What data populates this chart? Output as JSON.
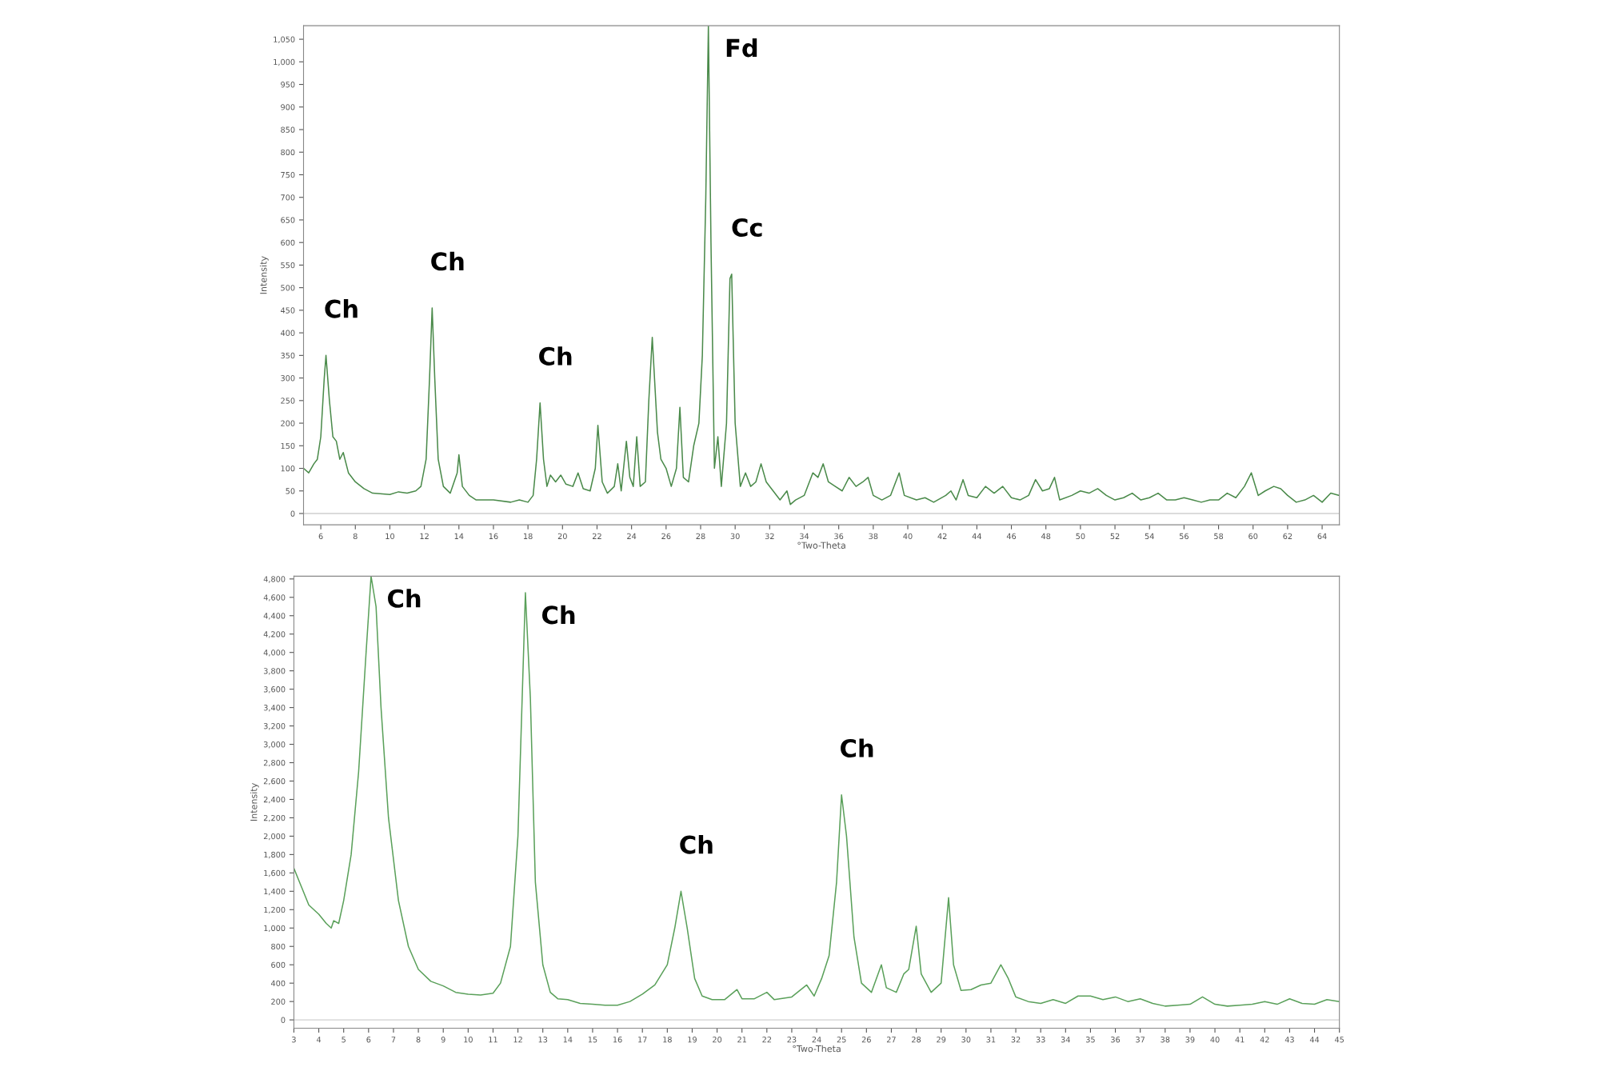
{
  "chart_data": [
    {
      "type": "line",
      "xlabel": "°Two-Theta",
      "ylabel": "Intensity",
      "xlim": [
        5,
        65
      ],
      "ylim": [
        -25,
        1080
      ],
      "xticks": [
        6,
        8,
        10,
        12,
        14,
        16,
        18,
        20,
        22,
        24,
        26,
        28,
        30,
        32,
        34,
        36,
        38,
        40,
        42,
        44,
        46,
        48,
        50,
        52,
        54,
        56,
        58,
        60,
        62,
        64
      ],
      "yticks": [
        0,
        50,
        100,
        150,
        200,
        250,
        300,
        350,
        400,
        450,
        500,
        550,
        600,
        650,
        700,
        750,
        800,
        850,
        900,
        950,
        {
          "value": 1000,
          "label": "1,000"
        },
        {
          "value": 1050,
          "label": "1,050"
        }
      ],
      "grid": false,
      "ref_lines": [
        {
          "axis": "y",
          "value": 0,
          "color": "#d0d0d0"
        }
      ],
      "annotations": [
        {
          "text": "Ch",
          "x": 6.3,
          "y": 350
        },
        {
          "text": "Ch",
          "x": 12.45,
          "y": 455
        },
        {
          "text": "Ch",
          "x": 18.7,
          "y": 245
        },
        {
          "text": "Fd",
          "x": 28.45,
          "y": 1080
        },
        {
          "text": "Cc",
          "x": 29.8,
          "y": 530
        }
      ],
      "series": [
        {
          "color": "#4a8a4a",
          "x": [
            5.0,
            5.3,
            5.6,
            5.8,
            6.0,
            6.2,
            6.3,
            6.5,
            6.7,
            6.9,
            7.1,
            7.3,
            7.6,
            8.0,
            8.5,
            9.0,
            10.0,
            10.5,
            11.0,
            11.5,
            11.8,
            12.1,
            12.3,
            12.45,
            12.6,
            12.8,
            13.1,
            13.5,
            13.9,
            14.0,
            14.2,
            14.6,
            15.0,
            16.0,
            17.0,
            17.5,
            18.0,
            18.3,
            18.5,
            18.7,
            18.9,
            19.1,
            19.3,
            19.6,
            19.9,
            20.2,
            20.6,
            20.9,
            21.2,
            21.6,
            21.9,
            22.05,
            22.3,
            22.6,
            23.0,
            23.2,
            23.4,
            23.7,
            23.9,
            24.1,
            24.3,
            24.5,
            24.8,
            25.0,
            25.2,
            25.5,
            25.7,
            26.0,
            26.3,
            26.6,
            26.8,
            27.0,
            27.3,
            27.6,
            27.9,
            28.1,
            28.3,
            28.45,
            28.6,
            28.8,
            29.0,
            29.2,
            29.5,
            29.7,
            29.8,
            30.0,
            30.3,
            30.6,
            30.9,
            31.2,
            31.5,
            31.8,
            32.2,
            32.6,
            33.0,
            33.2,
            33.5,
            34.0,
            34.5,
            34.8,
            35.1,
            35.4,
            35.8,
            36.2,
            36.6,
            37.0,
            37.4,
            37.7,
            38.0,
            38.5,
            39.0,
            39.5,
            39.8,
            40.5,
            41.0,
            41.5,
            42.2,
            42.5,
            42.8,
            43.2,
            43.5,
            44.0,
            44.5,
            45.0,
            45.5,
            46.0,
            46.5,
            47.0,
            47.4,
            47.8,
            48.2,
            48.5,
            48.8,
            49.5,
            50.0,
            50.5,
            51.0,
            51.5,
            52.0,
            52.5,
            53.0,
            53.5,
            54.0,
            54.5,
            55.0,
            55.5,
            56.0,
            56.5,
            57.0,
            57.5,
            58.0,
            58.5,
            59.0,
            59.5,
            59.9,
            60.3,
            60.7,
            61.2,
            61.6,
            62.0,
            62.5,
            63.0,
            63.5,
            64.0,
            64.5,
            65.0
          ],
          "values": [
            100,
            90,
            110,
            120,
            170,
            300,
            350,
            250,
            170,
            160,
            120,
            135,
            90,
            70,
            55,
            45,
            42,
            48,
            45,
            50,
            60,
            120,
            300,
            455,
            300,
            120,
            60,
            45,
            90,
            130,
            60,
            40,
            30,
            30,
            25,
            30,
            25,
            40,
            120,
            245,
            120,
            60,
            85,
            70,
            85,
            65,
            60,
            90,
            55,
            50,
            100,
            195,
            70,
            45,
            60,
            110,
            50,
            160,
            80,
            60,
            170,
            60,
            70,
            250,
            390,
            180,
            120,
            100,
            60,
            100,
            235,
            80,
            70,
            150,
            200,
            350,
            700,
            1080,
            600,
            100,
            170,
            60,
            200,
            520,
            530,
            200,
            60,
            90,
            60,
            70,
            110,
            70,
            50,
            30,
            50,
            20,
            30,
            40,
            90,
            80,
            110,
            70,
            60,
            50,
            80,
            60,
            70,
            80,
            40,
            30,
            40,
            90,
            40,
            30,
            35,
            25,
            40,
            50,
            30,
            75,
            40,
            35,
            60,
            45,
            60,
            35,
            30,
            40,
            75,
            50,
            55,
            80,
            30,
            40,
            50,
            45,
            55,
            40,
            30,
            35,
            45,
            30,
            35,
            45,
            30,
            30,
            35,
            30,
            25,
            30,
            30,
            45,
            35,
            60,
            90,
            40,
            50,
            60,
            55,
            40,
            25,
            30,
            40,
            25,
            45,
            40
          ]
        }
      ]
    },
    {
      "type": "line",
      "xlabel": "°Two-Theta",
      "ylabel": "Intensity",
      "xlim": [
        3,
        45
      ],
      "ylim": [
        -90,
        4830
      ],
      "xticks": [
        3,
        4,
        5,
        6,
        7,
        8,
        9,
        10,
        11,
        12,
        13,
        14,
        15,
        16,
        17,
        18,
        19,
        20,
        21,
        22,
        23,
        24,
        25,
        26,
        27,
        28,
        29,
        30,
        31,
        32,
        33,
        34,
        35,
        36,
        37,
        38,
        39,
        40,
        41,
        42,
        43,
        44,
        45
      ],
      "yticks": [
        0,
        200,
        400,
        600,
        800,
        {
          "value": 1000,
          "label": "1,000"
        },
        {
          "value": 1200,
          "label": "1,200"
        },
        {
          "value": 1400,
          "label": "1,400"
        },
        {
          "value": 1600,
          "label": "1,600"
        },
        {
          "value": 1800,
          "label": "1,800"
        },
        {
          "value": 2000,
          "label": "2,000"
        },
        {
          "value": 2200,
          "label": "2,200"
        },
        {
          "value": 2400,
          "label": "2,400"
        },
        {
          "value": 2600,
          "label": "2,600"
        },
        {
          "value": 2800,
          "label": "2,800"
        },
        {
          "value": 3000,
          "label": "3,000"
        },
        {
          "value": 3200,
          "label": "3,200"
        },
        {
          "value": 3400,
          "label": "3,400"
        },
        {
          "value": 3600,
          "label": "3,600"
        },
        {
          "value": 3800,
          "label": "3,800"
        },
        {
          "value": 4000,
          "label": "4,000"
        },
        {
          "value": 4200,
          "label": "4,200"
        },
        {
          "value": 4400,
          "label": "4,400"
        },
        {
          "value": 4600,
          "label": "4,600"
        },
        {
          "value": 4800,
          "label": "4,800"
        }
      ],
      "grid": false,
      "ref_lines": [
        {
          "axis": "y",
          "value": 0,
          "color": "#d0d0d0"
        }
      ],
      "annotations": [
        {
          "text": "Ch",
          "x": 6.1,
          "y": 4830
        },
        {
          "text": "Ch",
          "x": 12.3,
          "y": 4650
        },
        {
          "text": "Ch",
          "x": 18.55,
          "y": 1400
        },
        {
          "text": "Ch",
          "x": 25.0,
          "y": 2450
        }
      ],
      "series": [
        {
          "color": "#5aa05a",
          "x": [
            3.0,
            3.3,
            3.6,
            4.0,
            4.3,
            4.5,
            4.6,
            4.8,
            5.0,
            5.3,
            5.6,
            5.9,
            6.1,
            6.3,
            6.5,
            6.8,
            7.2,
            7.6,
            8.0,
            8.5,
            9.0,
            9.5,
            10.0,
            10.5,
            11.0,
            11.3,
            11.7,
            12.0,
            12.3,
            12.5,
            12.7,
            13.0,
            13.3,
            13.6,
            14.0,
            14.5,
            15.0,
            15.5,
            16.0,
            16.5,
            17.0,
            17.5,
            18.0,
            18.3,
            18.55,
            18.8,
            19.1,
            19.4,
            19.8,
            20.3,
            20.8,
            21.0,
            21.5,
            22.0,
            22.3,
            23.0,
            23.6,
            23.9,
            24.2,
            24.5,
            24.8,
            25.0,
            25.2,
            25.5,
            25.8,
            26.2,
            26.6,
            26.8,
            27.2,
            27.5,
            27.7,
            28.0,
            28.2,
            28.6,
            29.0,
            29.3,
            29.5,
            29.8,
            30.2,
            30.6,
            31.0,
            31.4,
            31.7,
            32.0,
            32.5,
            33.0,
            33.5,
            34.0,
            34.5,
            35.0,
            35.5,
            36.0,
            36.5,
            37.0,
            37.5,
            38.0,
            38.5,
            39.0,
            39.5,
            40.0,
            40.5,
            41.0,
            41.5,
            42.0,
            42.5,
            43.0,
            43.5,
            44.0,
            44.5,
            45.0
          ],
          "values": [
            1650,
            1450,
            1250,
            1150,
            1050,
            1000,
            1080,
            1050,
            1300,
            1800,
            2700,
            4000,
            4830,
            4500,
            3400,
            2200,
            1300,
            800,
            550,
            420,
            370,
            300,
            280,
            270,
            290,
            400,
            800,
            2000,
            4650,
            3500,
            1500,
            600,
            300,
            230,
            220,
            180,
            170,
            160,
            160,
            200,
            280,
            380,
            600,
            1000,
            1400,
            1000,
            450,
            260,
            220,
            220,
            330,
            230,
            230,
            300,
            220,
            250,
            380,
            260,
            450,
            700,
            1500,
            2450,
            2000,
            900,
            400,
            300,
            600,
            350,
            300,
            500,
            550,
            1020,
            500,
            300,
            400,
            1330,
            600,
            320,
            330,
            380,
            400,
            600,
            450,
            250,
            200,
            180,
            220,
            180,
            260,
            260,
            220,
            250,
            200,
            230,
            180,
            150,
            160,
            170,
            250,
            170,
            150,
            160,
            170,
            200,
            170,
            230,
            180,
            170,
            220,
            200
          ]
        }
      ]
    }
  ]
}
